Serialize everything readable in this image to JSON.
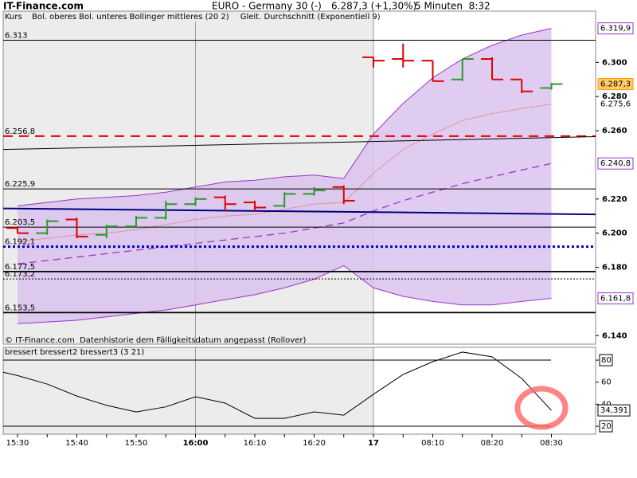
{
  "header": {
    "site": "IT-Finance.com",
    "instrument": "EURO - Germany 30 (-)",
    "quote": "6.287,3 (+1,30%)",
    "interval": "5 Minuten  8:32"
  },
  "chart_data": [
    {
      "type": "ohlc",
      "label": "Kurs",
      "legend": [
        {
          "text": "Bol. oberes Bol. unteres Bollinger mittleres (20 2)",
          "color": "#9933cc"
        },
        {
          "text": "Gleit. Durchschnitt (Exponentiell 9)",
          "color": "#e07a70"
        }
      ],
      "footer": "© IT-Finance.com  Datenhistorie dem Fälligkeitsdatum angepasst (Rollover)",
      "categories": [
        "15:30",
        null,
        "15:40",
        null,
        "15:50",
        null,
        "16:00",
        null,
        "16:10",
        null,
        "16:20",
        null,
        "17",
        null,
        "08:10",
        null,
        "08:20",
        null,
        "08:30"
      ],
      "bold_categories": [
        "16:00",
        "17"
      ],
      "session_break": "17",
      "ohlc": {
        "open": [
          6.203,
          6.2,
          6.208,
          6.199,
          6.204,
          6.209,
          6.217,
          6.221,
          6.218,
          6.216,
          6.223,
          6.227,
          6.303,
          6.302,
          6.301,
          6.29,
          6.302,
          6.29,
          6.285
        ],
        "high": [
          6.204,
          6.208,
          6.209,
          6.205,
          6.21,
          6.219,
          6.221,
          6.222,
          6.219,
          6.224,
          6.227,
          6.228,
          6.303,
          6.311,
          6.301,
          6.302,
          6.303,
          6.29,
          6.288
        ],
        "low": [
          6.2,
          6.199,
          6.197,
          6.197,
          6.203,
          6.208,
          6.216,
          6.213,
          6.213,
          6.215,
          6.222,
          6.217,
          6.297,
          6.297,
          6.289,
          6.289,
          6.29,
          6.282,
          6.284
        ],
        "close": [
          6.2,
          6.207,
          6.198,
          6.204,
          6.209,
          6.217,
          6.22,
          6.217,
          6.215,
          6.223,
          6.225,
          6.219,
          6.301,
          6.301,
          6.289,
          6.302,
          6.29,
          6.283,
          6.2873
        ],
        "up_color": "#2a9a2a",
        "down_color": "#e00000",
        "value_labels": [
          null,
          null,
          null,
          null,
          null,
          null,
          null,
          null,
          null,
          null,
          null,
          null,
          null,
          null,
          null,
          null,
          null,
          null,
          "6.287,3"
        ],
        "label_color": "#ff9900"
      },
      "bands": {
        "fill": "#dcc3ef",
        "color": "#9933cc",
        "upper": [
          6.216,
          6.218,
          6.22,
          6.221,
          6.222,
          6.224,
          6.227,
          6.23,
          6.231,
          6.233,
          6.234,
          6.232,
          6.258,
          6.276,
          6.291,
          6.302,
          6.31,
          6.316,
          6.3199
        ],
        "upper_labels": [
          null,
          null,
          null,
          null,
          null,
          null,
          null,
          null,
          null,
          null,
          null,
          null,
          null,
          null,
          null,
          null,
          null,
          null,
          "6.319,9"
        ],
        "lower": [
          6.147,
          6.148,
          6.149,
          6.151,
          6.153,
          6.155,
          6.158,
          6.161,
          6.164,
          6.168,
          6.173,
          6.181,
          6.168,
          6.163,
          6.16,
          6.158,
          6.158,
          6.16,
          6.1618
        ],
        "lower_labels": [
          null,
          null,
          null,
          null,
          null,
          null,
          null,
          null,
          null,
          null,
          null,
          null,
          null,
          null,
          null,
          null,
          null,
          null,
          "6.161,8"
        ],
        "middle": [
          6.182,
          6.184,
          6.186,
          6.188,
          6.19,
          6.192,
          6.194,
          6.196,
          6.198,
          6.2,
          6.203,
          6.206,
          6.213,
          6.219,
          6.224,
          6.229,
          6.233,
          6.237,
          6.2408
        ],
        "middle_labels": [
          null,
          null,
          null,
          null,
          null,
          null,
          null,
          null,
          null,
          null,
          null,
          null,
          null,
          null,
          null,
          null,
          null,
          null,
          "6.240,8"
        ]
      },
      "ema": {
        "color": "#e07a70",
        "values": [
          6.195,
          6.197,
          6.199,
          6.2,
          6.202,
          6.205,
          6.208,
          6.21,
          6.211,
          6.214,
          6.217,
          6.218,
          6.235,
          6.249,
          6.258,
          6.266,
          6.27,
          6.273,
          6.2756
        ],
        "value_labels": [
          null,
          null,
          null,
          null,
          null,
          null,
          null,
          null,
          null,
          null,
          null,
          null,
          null,
          null,
          null,
          null,
          null,
          null,
          "6.275,6"
        ]
      },
      "hlines": [
        {
          "value": 6.313,
          "label": "6.313",
          "color": "#000",
          "style": "solid"
        },
        {
          "value": 6.2568,
          "label": "6.256,8",
          "color": "#e00000",
          "style": "dashed"
        },
        {
          "value": 6.2259,
          "label": "6.225,9",
          "color": "#000",
          "style": "solid"
        },
        {
          "value": 6.2035,
          "label": "6.203,5",
          "color": "#000",
          "style": "solid"
        },
        {
          "value": 6.1921,
          "label": "6.192,1",
          "color": "#0000cc",
          "style": "dotted"
        },
        {
          "value": 6.1775,
          "label": "6.177,5",
          "color": "#000",
          "style": "thick"
        },
        {
          "value": 6.1732,
          "label": "6.173,2",
          "color": "#000",
          "style": "dotted"
        },
        {
          "value": 6.1535,
          "label": "6.153,5",
          "color": "#000",
          "style": "thick"
        }
      ],
      "trendlines": [
        {
          "color": "#000",
          "values": [
            6.249,
            6.2565
          ]
        },
        {
          "color": "#000080",
          "values": [
            6.2145,
            6.211
          ]
        }
      ],
      "ylim": [
        6.135,
        6.33
      ],
      "yticks": [
        {
          "value": 6.3,
          "label": "6.300"
        },
        {
          "value": 6.28,
          "label": "6.280"
        },
        {
          "value": 6.26,
          "label": "6.260"
        },
        {
          "value": 6.22,
          "label": "6.220"
        },
        {
          "value": 6.2,
          "label": "6.200"
        },
        {
          "value": 6.18,
          "label": "6.180"
        },
        {
          "value": 6.14,
          "label": "6.140"
        }
      ]
    },
    {
      "type": "line",
      "title": "bressert bressert2 bressert3 (3 21)",
      "color": "#000",
      "values": [
        66,
        58.3,
        47.4,
        39,
        33,
        37.6,
        46.8,
        41,
        27.2,
        27.2,
        33,
        30.1,
        49,
        67,
        78.6,
        87.3,
        83,
        63.4,
        34.391
      ],
      "value_labels": [
        null,
        null,
        null,
        null,
        null,
        null,
        null,
        null,
        null,
        null,
        null,
        null,
        null,
        null,
        null,
        null,
        null,
        null,
        "34,391"
      ],
      "hlines": [
        80,
        20
      ],
      "ylim": [
        12.8,
        91.6
      ],
      "yticks": [
        80,
        60,
        40,
        20
      ]
    }
  ]
}
